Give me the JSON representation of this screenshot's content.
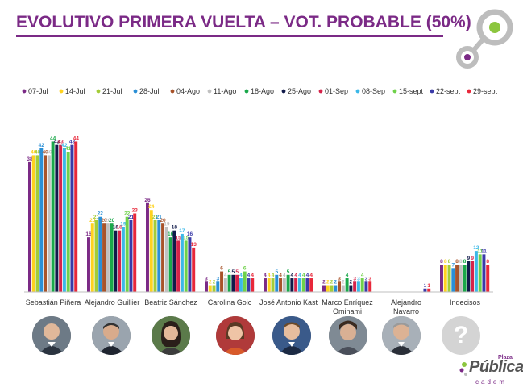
{
  "title": "EVOLUTIVO PRIMERA VUELTA – VOT. PROBABLE (50%)",
  "chart_data": {
    "type": "bar",
    "title": "EVOLUTIVO PRIMERA VUELTA – VOT. PROBABLE (50%)",
    "xlabel": "",
    "ylabel": "",
    "ylim": [
      0,
      50
    ],
    "grid": false,
    "legend_position": "top",
    "categories": [
      "Sebastián Piñera",
      "Alejandro Guillier",
      "Beatriz Sánchez",
      "Carolina Goic",
      "José Antonio Kast",
      "Marco Enríquez Ominami",
      "Alejandro Navarro",
      "Indecisos"
    ],
    "series": [
      {
        "name": "07-Jul",
        "color": "#7b2a86",
        "values": [
          38,
          16,
          26,
          3,
          4,
          2,
          null,
          8
        ]
      },
      {
        "name": "14-Jul",
        "color": "#ffd21f",
        "values": [
          40,
          20,
          24,
          2,
          4,
          2,
          null,
          8
        ]
      },
      {
        "name": "21-Jul",
        "color": "#a4cc38",
        "values": [
          40,
          21,
          21,
          2,
          4,
          2,
          null,
          8
        ]
      },
      {
        "name": "28-Jul",
        "color": "#2a8fd6",
        "values": [
          42,
          22,
          21,
          3,
          5,
          2,
          null,
          7
        ]
      },
      {
        "name": "04-Ago",
        "color": "#a8532a",
        "values": [
          40,
          20,
          20,
          6,
          4,
          3,
          null,
          8
        ]
      },
      {
        "name": "11-Ago",
        "color": "#c0c0c0",
        "values": [
          40,
          20,
          19,
          4,
          4,
          2,
          null,
          8
        ]
      },
      {
        "name": "18-Ago",
        "color": "#1aa84a",
        "values": [
          44,
          20,
          16,
          5,
          5,
          4,
          null,
          8
        ]
      },
      {
        "name": "25-Ago",
        "color": "#101a4a",
        "values": [
          43,
          18,
          18,
          5,
          4,
          2,
          null,
          9
        ]
      },
      {
        "name": "01-Sep",
        "color": "#d6234a",
        "values": [
          43,
          18,
          15,
          5,
          4,
          3,
          null,
          9
        ]
      },
      {
        "name": "08-Sep",
        "color": "#3bb8e8",
        "values": [
          42,
          19,
          17,
          4,
          4,
          3,
          null,
          12
        ]
      },
      {
        "name": "15-sept",
        "color": "#6fd14a",
        "values": [
          41,
          22,
          15,
          6,
          4,
          4,
          null,
          11
        ]
      },
      {
        "name": "22-sept",
        "color": "#3a3aa8",
        "values": [
          43,
          21,
          16,
          4,
          4,
          3,
          1,
          11
        ]
      },
      {
        "name": "29-sept",
        "color": "#e8283a",
        "values": [
          44,
          23,
          13,
          4,
          4,
          3,
          1,
          8
        ]
      }
    ]
  },
  "candidate_icons": [
    "portrait-icon",
    "portrait-icon",
    "portrait-icon",
    "portrait-icon",
    "portrait-icon",
    "portrait-icon",
    "portrait-icon",
    "question-icon"
  ],
  "indecisos_symbol": "?",
  "brand": {
    "plaza": "Plaza",
    "name": "Pública",
    "sub": "cadem",
    "colors": {
      "accent": "#7b2a86",
      "green": "#8cc63f",
      "gray": "#555555"
    }
  }
}
